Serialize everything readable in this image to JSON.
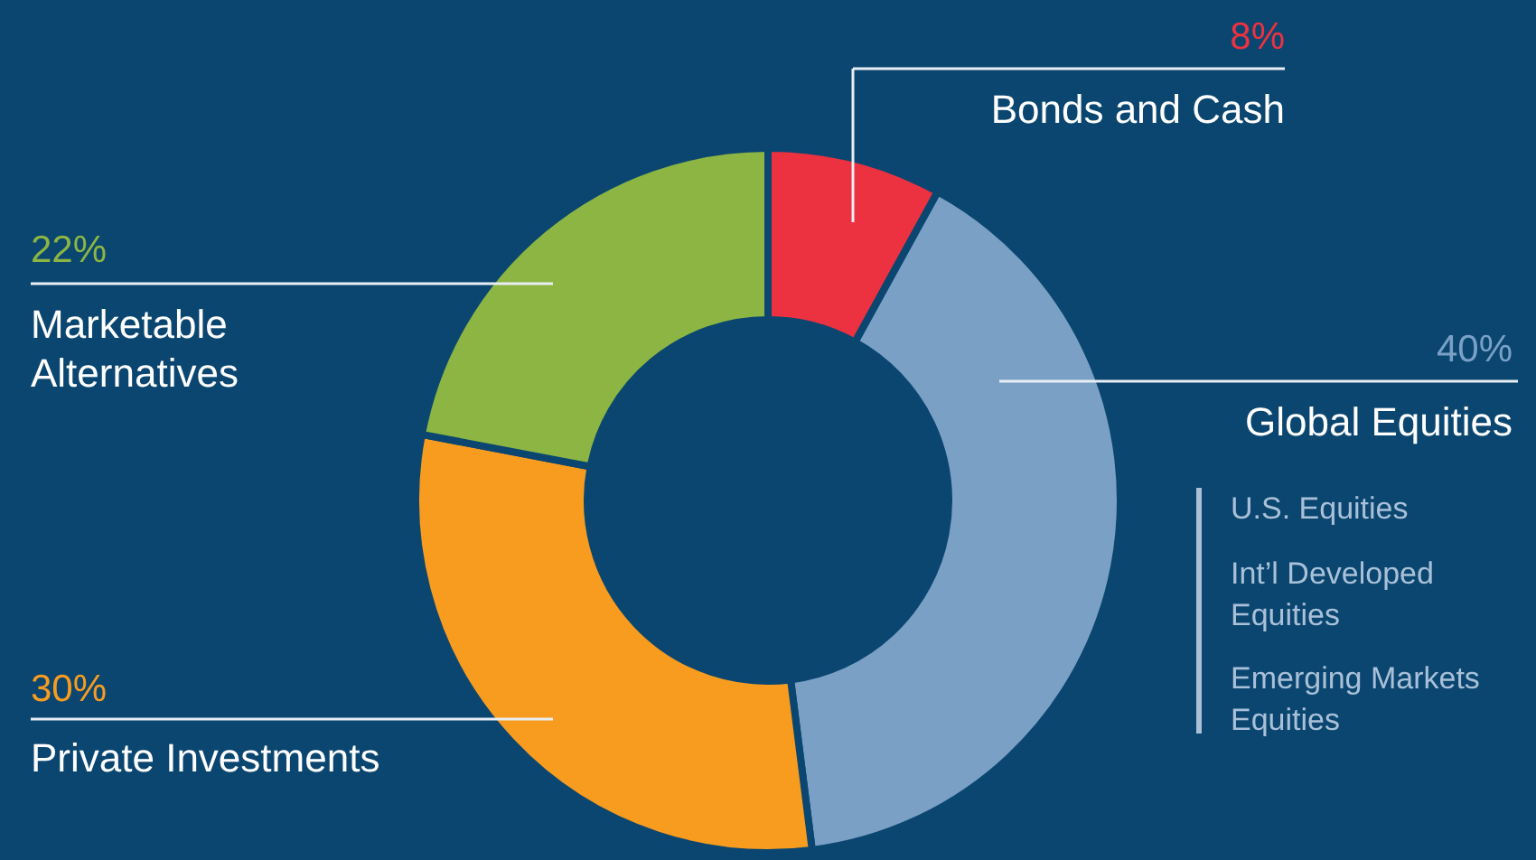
{
  "chart_data": {
    "type": "donut",
    "categories": [
      "Bonds and Cash",
      "Global Equities",
      "Private Investments",
      "Marketable Alternatives"
    ],
    "values": [
      8,
      40,
      30,
      22
    ],
    "colors": [
      "#ec3240",
      "#7aa0c6",
      "#f89c20",
      "#8cb543"
    ],
    "value_labels": [
      "8%",
      "40%",
      "30%",
      "22%"
    ],
    "annotations": [
      "U.S. Equities",
      "Int’l Developed Equities",
      "Emerging Markets Equities"
    ]
  }
}
